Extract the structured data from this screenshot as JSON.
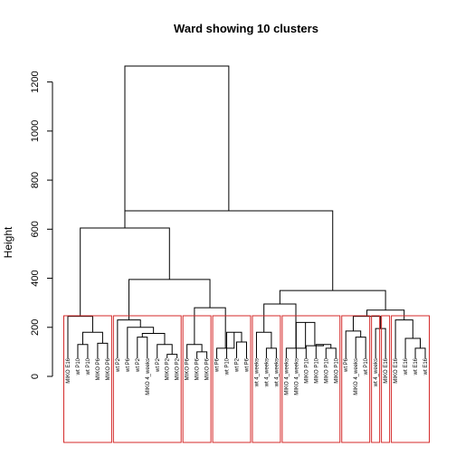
{
  "chart_data": {
    "type": "dendrogram",
    "title": "Ward showing 10 clusters",
    "ylabel": "Height",
    "xlabel": "",
    "ylim": [
      0,
      1300
    ],
    "yticks": [
      0,
      200,
      400,
      600,
      800,
      1000,
      1200
    ],
    "leaves": [
      "MIKO E16",
      "wt P10",
      "wt P10",
      "MIKO P6",
      "MIKO P6",
      "wt P2",
      "wt P6",
      "wt P2",
      "MIKO 4_weeks",
      "wt P2",
      "MIKO P2",
      "MIKO P2",
      "MIKO P6",
      "MIKO P6",
      "MIKO P6",
      "wt P6",
      "wt P10",
      "wt P2",
      "wt P6",
      "wt 4_weeks",
      "wt 4_weeks",
      "wt 4_weeks",
      "MIKO 4_weeks",
      "MIKO 4_weeks",
      "MIKO P10",
      "MIKO P10",
      "MIKO P10",
      "MIKO P10",
      "wt P6",
      "MIKO 4_weeks",
      "wt P10",
      "wt 4_weeks",
      "MIKO E16",
      "MIKO E16",
      "wt E16",
      "wt E16",
      "wt E16"
    ],
    "merges": [
      {
        "left": "L1",
        "right": "L2",
        "height": 130
      },
      {
        "left": "L3",
        "right": "L4",
        "height": 135
      },
      {
        "left": "M0",
        "right": "M1",
        "height": 180
      },
      {
        "left": "L0",
        "right": "M2",
        "height": 245
      },
      {
        "left": "L10",
        "right": "L11",
        "height": 90
      },
      {
        "left": "L9",
        "right": "M4",
        "height": 130
      },
      {
        "left": "L8",
        "right": "L7",
        "height": 160
      },
      {
        "left": "M6",
        "right": "M5",
        "height": 175
      },
      {
        "left": "L6",
        "right": "M7",
        "height": 200
      },
      {
        "left": "L5",
        "right": "M8",
        "height": 230
      },
      {
        "left": "L13",
        "right": "L14",
        "height": 100
      },
      {
        "left": "L12",
        "right": "M10",
        "height": 130
      },
      {
        "left": "L17",
        "right": "L18",
        "height": 140
      },
      {
        "left": "L16",
        "right": "M12",
        "height": 180
      },
      {
        "left": "L15",
        "right": "M13",
        "height": 115
      },
      {
        "left": "M11",
        "right": "M14",
        "height": 280
      },
      {
        "left": "M9",
        "right": "M15",
        "height": 395
      },
      {
        "left": "M3",
        "right": "M16",
        "height": 605
      },
      {
        "left": "L20",
        "right": "L21",
        "height": 115
      },
      {
        "left": "L19",
        "right": "M18",
        "height": 180
      },
      {
        "left": "L26",
        "right": "L27",
        "height": 115
      },
      {
        "left": "L25",
        "right": "M20",
        "height": 130
      },
      {
        "left": "L24",
        "right": "M21",
        "height": 125
      },
      {
        "left": "L23",
        "right": "M22",
        "height": 220
      },
      {
        "left": "L22",
        "right": "M23",
        "height": 115
      },
      {
        "left": "M24",
        "right": "M19",
        "height": 295
      },
      {
        "left": "L29",
        "right": "L30",
        "height": 160
      },
      {
        "left": "L28",
        "right": "M26",
        "height": 185
      },
      {
        "left": "L31",
        "right": "L32",
        "height": 195
      },
      {
        "left": "M27",
        "right": "M28",
        "height": 245
      },
      {
        "left": "L35",
        "right": "L36",
        "height": 115
      },
      {
        "left": "L34",
        "right": "M30",
        "height": 155
      },
      {
        "left": "L33",
        "right": "M31",
        "height": 230
      },
      {
        "left": "M29",
        "right": "M32",
        "height": 270
      },
      {
        "left": "M25",
        "right": "M33",
        "height": 350
      },
      {
        "left": "M17",
        "right": "M34",
        "height": 675
      },
      {
        "left": "M35",
        "right": "M17b",
        "height": 1265
      }
    ],
    "clusters": [
      {
        "from": 0,
        "to": 4
      },
      {
        "from": 5,
        "to": 11
      },
      {
        "from": 12,
        "to": 14
      },
      {
        "from": 15,
        "to": 18
      },
      {
        "from": 19,
        "to": 21
      },
      {
        "from": 22,
        "to": 27
      },
      {
        "from": 28,
        "to": 30
      },
      {
        "from": 31,
        "to": 31
      },
      {
        "from": 32,
        "to": 32
      },
      {
        "from": 33,
        "to": 36
      }
    ],
    "cluster_color": "#d42a2a",
    "grid": false
  }
}
